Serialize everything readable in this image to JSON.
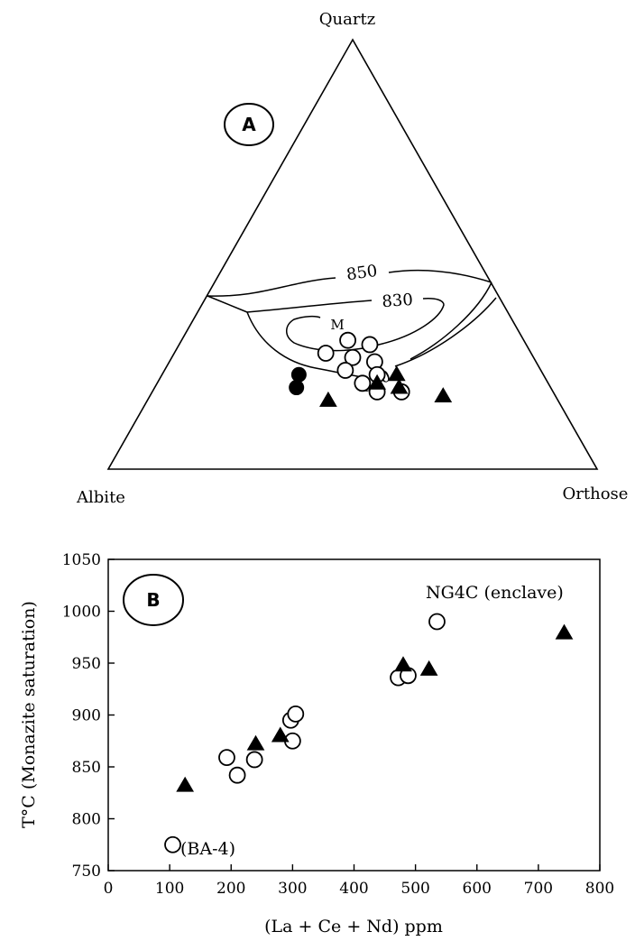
{
  "chart_data": [
    {
      "type": "ternary",
      "panel_label": "A",
      "apex_labels": {
        "top": "Quartz",
        "left": "Albite",
        "right": "Orthose"
      },
      "isotherm_labels": [
        "850",
        "830",
        "850"
      ],
      "inner_label": "M",
      "series": [
        {
          "marker": "open-circle",
          "points": [
            {
              "qz": 0.3,
              "ab": 0.36,
              "or": 0.34
            },
            {
              "qz": 0.29,
              "ab": 0.32,
              "or": 0.39
            },
            {
              "qz": 0.27,
              "ab": 0.42,
              "or": 0.31
            },
            {
              "qz": 0.26,
              "ab": 0.37,
              "or": 0.37
            },
            {
              "qz": 0.25,
              "ab": 0.33,
              "or": 0.42
            },
            {
              "qz": 0.23,
              "ab": 0.4,
              "or": 0.37
            },
            {
              "qz": 0.22,
              "ab": 0.34,
              "or": 0.44
            },
            {
              "qz": 0.2,
              "ab": 0.38,
              "or": 0.42
            },
            {
              "qz": 0.18,
              "ab": 0.36,
              "or": 0.46
            },
            {
              "qz": 0.18,
              "ab": 0.31,
              "or": 0.51
            }
          ]
        },
        {
          "marker": "filled-circle",
          "points": [
            {
              "qz": 0.22,
              "ab": 0.5,
              "or": 0.28
            },
            {
              "qz": 0.19,
              "ab": 0.52,
              "or": 0.29
            }
          ]
        },
        {
          "marker": "filled-triangle",
          "points": [
            {
              "qz": 0.22,
              "ab": 0.3,
              "or": 0.48
            },
            {
              "qz": 0.2,
              "ab": 0.35,
              "or": 0.45
            },
            {
              "qz": 0.19,
              "ab": 0.31,
              "or": 0.5
            },
            {
              "qz": 0.16,
              "ab": 0.47,
              "or": 0.37
            },
            {
              "qz": 0.17,
              "ab": 0.23,
              "or": 0.6
            }
          ]
        }
      ]
    },
    {
      "type": "scatter",
      "panel_label": "B",
      "xlabel": "(La + Ce + Nd) ppm",
      "ylabel": "T°C (Monazite saturation)",
      "xlim": [
        0,
        800
      ],
      "ylim": [
        750,
        1050
      ],
      "xticks": [
        0,
        100,
        200,
        300,
        400,
        500,
        600,
        700,
        800
      ],
      "yticks": [
        750,
        800,
        850,
        900,
        950,
        1000,
        1050
      ],
      "grid": false,
      "annotations": [
        {
          "text": "NG4C (enclave)",
          "x": 535,
          "y": 990
        },
        {
          "text": "(BA-4)",
          "x": 105,
          "y": 775
        }
      ],
      "series": [
        {
          "marker": "open-circle",
          "points": [
            {
              "x": 105,
              "y": 775
            },
            {
              "x": 193,
              "y": 859
            },
            {
              "x": 210,
              "y": 842
            },
            {
              "x": 238,
              "y": 857
            },
            {
              "x": 297,
              "y": 895
            },
            {
              "x": 305,
              "y": 901
            },
            {
              "x": 300,
              "y": 875
            },
            {
              "x": 472,
              "y": 936
            },
            {
              "x": 488,
              "y": 938
            },
            {
              "x": 535,
              "y": 990
            }
          ]
        },
        {
          "marker": "filled-triangle",
          "points": [
            {
              "x": 125,
              "y": 832
            },
            {
              "x": 240,
              "y": 872
            },
            {
              "x": 280,
              "y": 880
            },
            {
              "x": 480,
              "y": 948
            },
            {
              "x": 522,
              "y": 944
            },
            {
              "x": 742,
              "y": 979
            }
          ]
        }
      ]
    }
  ]
}
